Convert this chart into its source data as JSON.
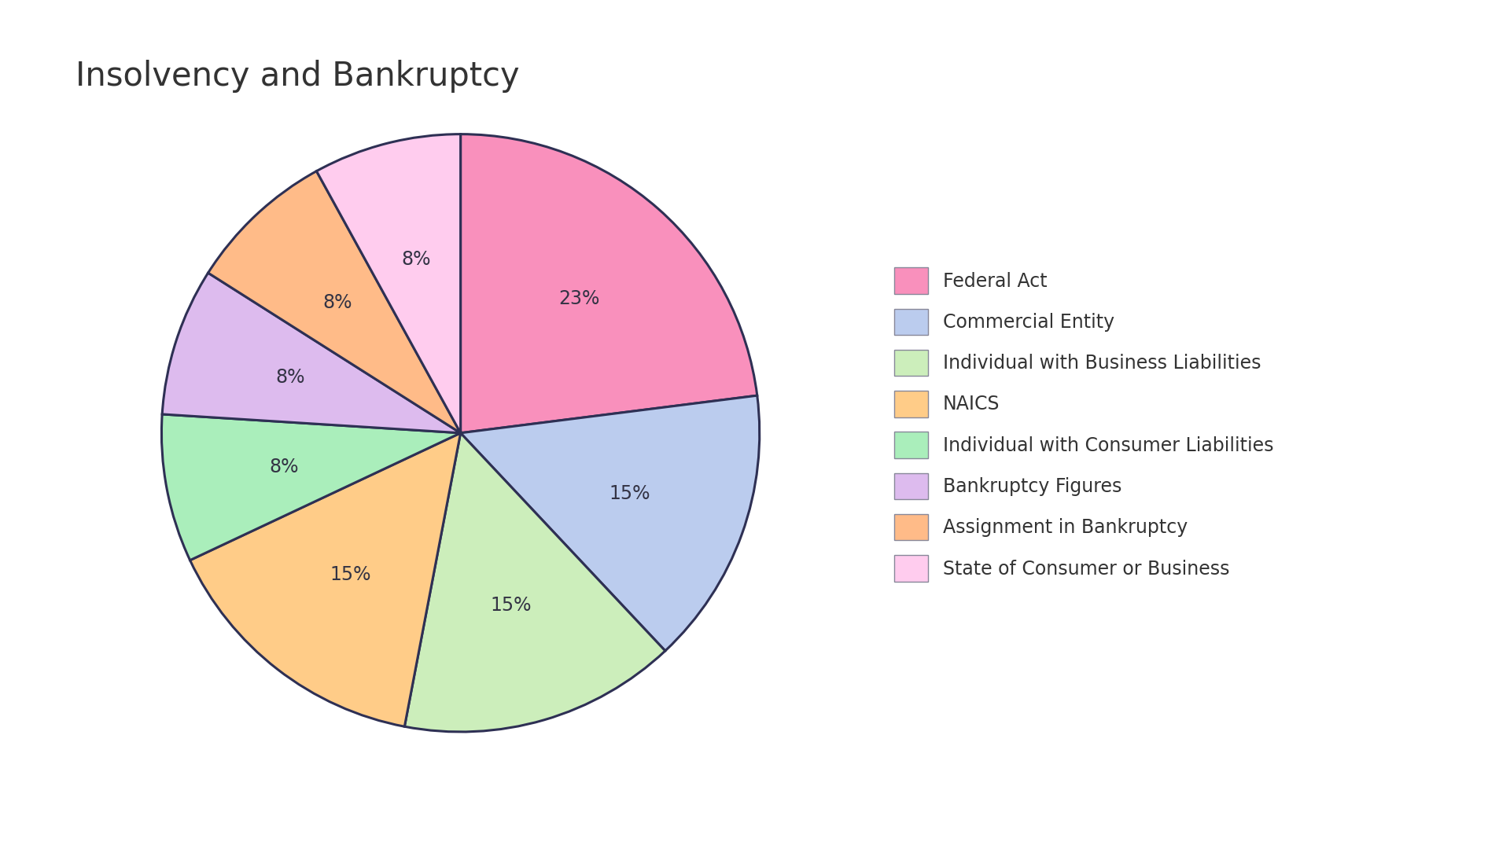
{
  "title": "Insolvency and Bankruptcy",
  "labels": [
    "Federal Act",
    "Commercial Entity",
    "Individual with Business Liabilities",
    "NAICS",
    "Individual with Consumer Liabilities",
    "Bankruptcy Figures",
    "Assignment in Bankruptcy",
    "State of Consumer or Business"
  ],
  "values": [
    23,
    15,
    15,
    15,
    8,
    8,
    8,
    8
  ],
  "colors": [
    "#F990BC",
    "#BBCCEE",
    "#CCEEBB",
    "#FFCC88",
    "#AAEEBB",
    "#DDBBEE",
    "#FFBB88",
    "#FFCCEE"
  ],
  "background_color": "#FFFFFF",
  "edge_color": "#2E3054",
  "title_fontsize": 30,
  "label_fontsize": 17,
  "legend_fontsize": 17,
  "startangle": 90
}
